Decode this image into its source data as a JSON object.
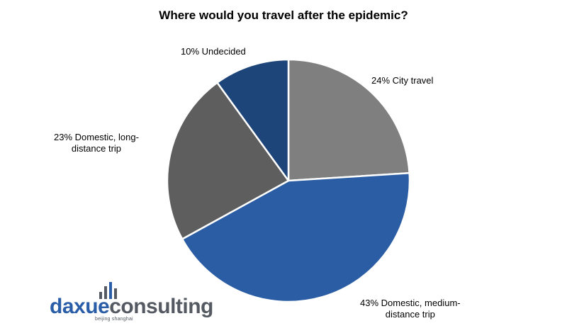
{
  "chart_data": {
    "type": "pie",
    "title": "Where would you travel after the epidemic?",
    "slices": [
      {
        "label_line1": "24% City travel",
        "label_line2": "",
        "value": 24,
        "color": "#7f7f7f"
      },
      {
        "label_line1": "43%  Domestic, medium-",
        "label_line2": "distance trip",
        "value": 43,
        "color": "#2a5da3"
      },
      {
        "label_line1": "23% Domestic, long-",
        "label_line2": "distance trip",
        "value": 23,
        "color": "#5e5e5e"
      },
      {
        "label_line1": "10% Undecided",
        "label_line2": "",
        "value": 10,
        "color": "#1e4579"
      }
    ],
    "start": "12 o'clock",
    "direction": "clockwise"
  },
  "logo": {
    "word_part1": "daxue",
    "word_part2": "consulting",
    "tagline": "beijing shanghai"
  }
}
